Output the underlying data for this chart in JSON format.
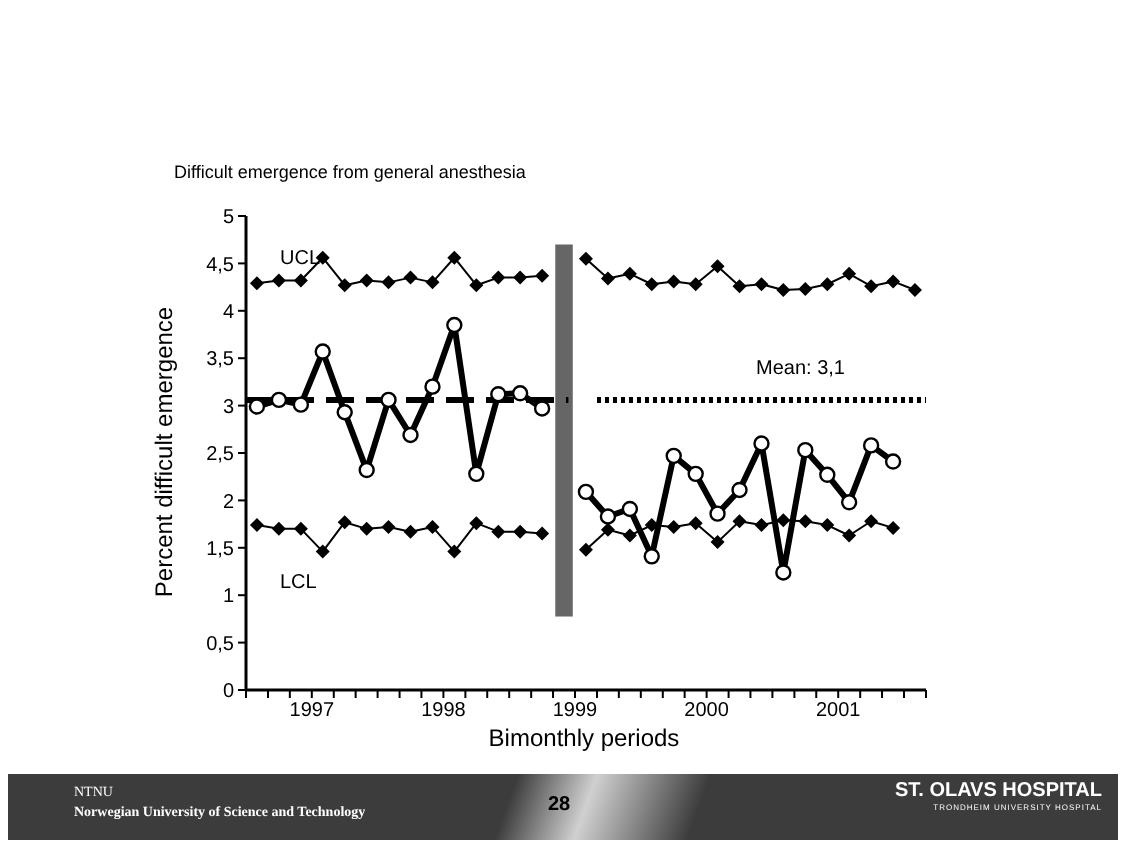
{
  "chart_data": {
    "type": "line",
    "title": "Difficult emergence from general anesthesia",
    "xlabel": "Bimonthly periods",
    "ylabel": "Percent difficult emergence",
    "x": [
      1996.583,
      1996.75,
      1996.917,
      1997.083,
      1997.25,
      1997.417,
      1997.583,
      1997.75,
      1997.917,
      1998.083,
      1998.25,
      1998.417,
      1998.583,
      1998.75,
      1998.917,
      1999.083,
      1999.25,
      1999.417,
      1999.583,
      1999.75,
      1999.917,
      2000.083,
      2000.25,
      2000.417,
      2000.583,
      2000.75,
      2000.917,
      2001.083,
      2001.25,
      2001.417,
      2001.583
    ],
    "series": [
      {
        "color": "#000000",
        "marker": "diamond",
        "line_style": "solid",
        "values": [
          4.29,
          4.32,
          4.32,
          4.56,
          4.27,
          4.32,
          4.3,
          4.35,
          4.3,
          4.56,
          4.27,
          4.35,
          4.35,
          4.37,
          null,
          4.55,
          4.34,
          4.39,
          4.28,
          4.31,
          4.28,
          4.47,
          4.26,
          4.28,
          4.22,
          4.23,
          4.28,
          4.39,
          4.26,
          4.31,
          4.22
        ]
      },
      {
        "color": "#000000",
        "marker": "diamond",
        "line_style": "solid",
        "values": [
          1.74,
          1.7,
          1.7,
          1.46,
          1.77,
          1.7,
          1.72,
          1.67,
          1.72,
          1.46,
          1.76,
          1.67,
          1.67,
          1.65,
          null,
          1.48,
          1.69,
          1.63,
          1.74,
          1.72,
          1.76,
          1.56,
          1.78,
          1.74,
          1.79,
          1.78,
          1.74,
          1.63,
          1.78,
          1.71,
          null
        ]
      },
      {
        "color": "#000000",
        "marker": "circle",
        "line_style": "solid",
        "values": [
          2.99,
          3.06,
          3.01,
          3.57,
          2.93,
          2.32,
          3.06,
          2.69,
          3.2,
          3.85,
          2.28,
          3.12,
          3.13,
          2.97,
          null,
          2.09,
          1.83,
          1.91,
          1.41,
          2.47,
          2.28,
          1.86,
          2.11,
          2.6,
          1.24,
          2.53,
          2.27,
          1.98,
          2.58,
          2.41,
          null
        ]
      },
      {
        "type": "line",
        "color": "#000000",
        "marker": "none",
        "line_style": "dashed",
        "x": [
          1996.5,
          1998.95
        ],
        "values": [
          3.06,
          3.06
        ]
      },
      {
        "type": "line",
        "color": "#000000",
        "marker": "none",
        "line_style": "dotted",
        "x": [
          1999.167,
          2001.667
        ],
        "values": [
          3.06,
          3.06
        ]
      }
    ],
    "bands": [
      {
        "axis": "x",
        "from": 1998.85,
        "to": 1998.983,
        "color": "#666666"
      }
    ],
    "xlim": [
      1996.5,
      2001.667
    ],
    "xticks": [
      {
        "value": 1996.5,
        "label": null
      },
      {
        "value": 1996.667,
        "label": null
      },
      {
        "value": 1996.833,
        "label": null
      },
      1997,
      {
        "value": 1997.167,
        "label": null
      },
      {
        "value": 1997.333,
        "label": null
      },
      {
        "value": 1997.5,
        "label": null
      },
      {
        "value": 1997.667,
        "label": null
      },
      {
        "value": 1997.833,
        "label": null
      },
      1998,
      {
        "value": 1998.167,
        "label": null
      },
      {
        "value": 1998.333,
        "label": null
      },
      {
        "value": 1998.5,
        "label": null
      },
      {
        "value": 1998.667,
        "label": null
      },
      {
        "value": 1998.833,
        "label": null
      },
      1999,
      {
        "value": 1999.167,
        "label": null
      },
      {
        "value": 1999.333,
        "label": null
      },
      {
        "value": 1999.5,
        "label": null
      },
      {
        "value": 1999.667,
        "label": null
      },
      {
        "value": 1999.833,
        "label": null
      },
      2000,
      {
        "value": 2000.167,
        "label": null
      },
      {
        "value": 2000.333,
        "label": null
      },
      {
        "value": 2000.5,
        "label": null
      },
      {
        "value": 2000.667,
        "label": null
      },
      {
        "value": 2000.833,
        "label": null
      },
      2001,
      {
        "value": 2001.167,
        "label": null
      },
      {
        "value": 2001.333,
        "label": null
      },
      {
        "value": 2001.5,
        "label": null
      },
      {
        "value": 2001.667,
        "label": null
      }
    ],
    "ylim": [
      0,
      5
    ],
    "yticks": [
      0,
      {
        "value": 0.5,
        "label": "0,5"
      },
      1,
      {
        "value": 1.5,
        "label": "1,5"
      },
      2,
      {
        "value": 2.5,
        "label": "2,5"
      },
      3,
      {
        "value": 3.5,
        "label": "3,5"
      },
      4,
      {
        "value": 4.5,
        "label": "4,5"
      },
      5
    ],
    "annotations": [
      "UCL",
      "LCL",
      "Mean: 3,1",
      "NTNU",
      "Norwegian University of Science and Technology",
      "28",
      "ST. OLAVS HOSPITAL",
      "TRONDHEIM UNIVERSITY HOSPITAL"
    ]
  }
}
